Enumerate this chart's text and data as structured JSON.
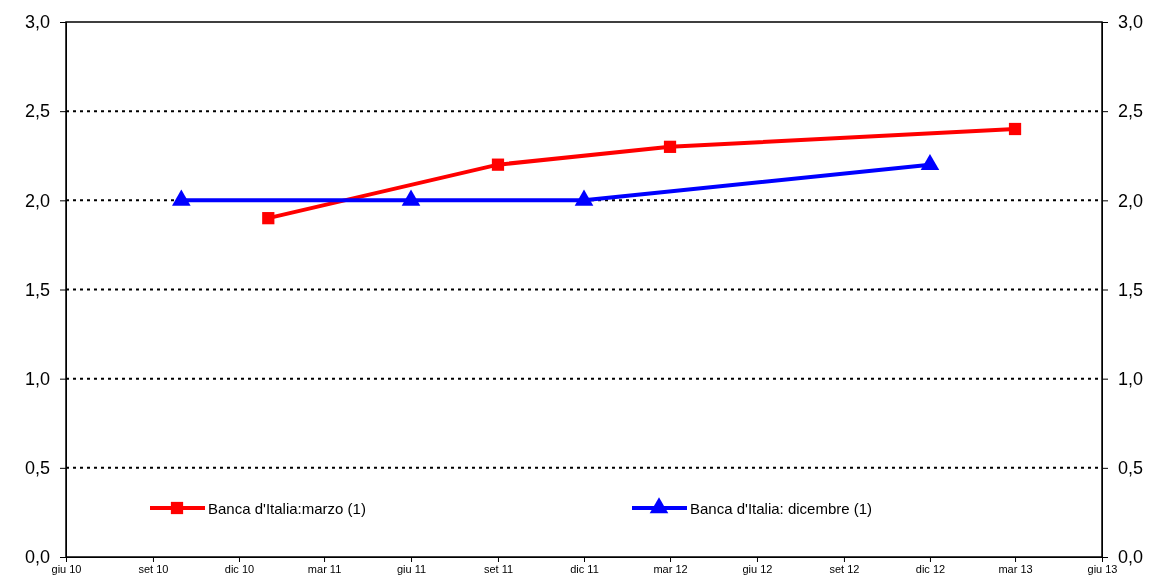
{
  "chart_data": {
    "type": "line",
    "xlim": [
      "2010-06",
      "2013-06"
    ],
    "xticks": [
      {
        "value": "2010-06",
        "label": "giu 10"
      },
      {
        "value": "2010-09",
        "label": "set 10"
      },
      {
        "value": "2010-12",
        "label": "dic 10"
      },
      {
        "value": "2011-03",
        "label": "mar 11"
      },
      {
        "value": "2011-06",
        "label": "giu 11"
      },
      {
        "value": "2011-09",
        "label": "set 11"
      },
      {
        "value": "2011-12",
        "label": "dic 11"
      },
      {
        "value": "2012-03",
        "label": "mar 12"
      },
      {
        "value": "2012-06",
        "label": "giu 12"
      },
      {
        "value": "2012-09",
        "label": "set 12"
      },
      {
        "value": "2012-12",
        "label": "dic 12"
      },
      {
        "value": "2013-03",
        "label": "mar 13"
      },
      {
        "value": "2013-06",
        "label": "giu 13"
      }
    ],
    "ylim": [
      0,
      3
    ],
    "yticks": [
      {
        "value": 0,
        "label": "0,0"
      },
      {
        "value": 0.5,
        "label": "0,5"
      },
      {
        "value": 1,
        "label": "1,0"
      },
      {
        "value": 1.5,
        "label": "1,5"
      },
      {
        "value": 2,
        "label": "2,0"
      },
      {
        "value": 2.5,
        "label": "2,5"
      },
      {
        "value": 3,
        "label": "3,0"
      }
    ],
    "y2lim": [
      0,
      3
    ],
    "y2ticks": [
      {
        "value": 0,
        "label": "0,0"
      },
      {
        "value": 0.5,
        "label": "0,5"
      },
      {
        "value": 1,
        "label": "1,0"
      },
      {
        "value": 1.5,
        "label": "1,5"
      },
      {
        "value": 2,
        "label": "2,0"
      },
      {
        "value": 2.5,
        "label": "2,5"
      },
      {
        "value": 3,
        "label": "3,0"
      }
    ],
    "grid": "y",
    "legend": "bottom",
    "line_style": "solid",
    "series": [
      {
        "name": "Banca d'Italia:marzo (1)",
        "color": "#ff0000",
        "marker": "square",
        "x": [
          "2011-01",
          "2011-09",
          "2012-03",
          "2013-03"
        ],
        "values": [
          1.9,
          2.2,
          2.3,
          2.4
        ]
      },
      {
        "name": "Banca d'Italia: dicembre (1)",
        "color": "#0000ff",
        "marker": "triangle",
        "x": [
          "2010-10",
          "2011-06",
          "2011-12",
          "2012-12"
        ],
        "values": [
          2.0,
          2.0,
          2.0,
          2.2
        ]
      }
    ]
  }
}
